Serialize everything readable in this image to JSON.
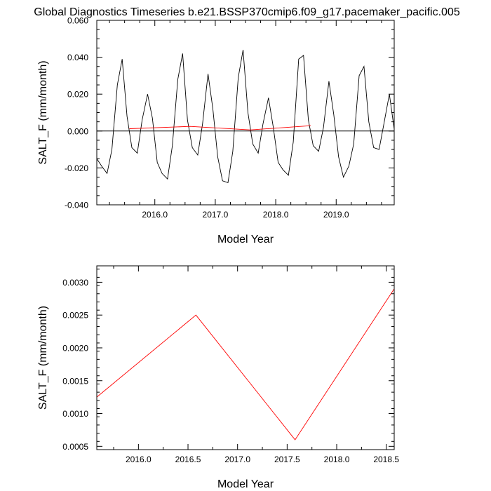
{
  "title": "Global Diagnostics Timeseries b.e21.BSSP370cmip6.f09_g17.pacemaker_pacific.005",
  "chart_data": [
    {
      "type": "line",
      "xlabel": "Model Year",
      "ylabel": "SALT_F (mm/month)",
      "xlim": [
        2015.04,
        2019.96
      ],
      "ylim": [
        -0.04,
        0.06
      ],
      "xticks": [
        2016.0,
        2017.0,
        2018.0,
        2019.0
      ],
      "xtick_labels": [
        "2016.0",
        "2017.0",
        "2018.0",
        "2019.0"
      ],
      "yticks": [
        -0.04,
        -0.02,
        0.0,
        0.02,
        0.04,
        0.06
      ],
      "ytick_labels": [
        "-0.040",
        "-0.020",
        "0.000",
        "0.020",
        "0.040",
        "0.060"
      ],
      "grid": false,
      "zero_line": true,
      "series": [
        {
          "color": "#000000",
          "x": [
            2015.04,
            2015.12,
            2015.21,
            2015.29,
            2015.38,
            2015.46,
            2015.54,
            2015.62,
            2015.71,
            2015.79,
            2015.88,
            2015.96,
            2016.04,
            2016.12,
            2016.21,
            2016.29,
            2016.38,
            2016.46,
            2016.54,
            2016.62,
            2016.71,
            2016.79,
            2016.88,
            2016.96,
            2017.04,
            2017.12,
            2017.21,
            2017.29,
            2017.38,
            2017.46,
            2017.54,
            2017.62,
            2017.71,
            2017.79,
            2017.88,
            2017.96,
            2018.04,
            2018.12,
            2018.21,
            2018.29,
            2018.38,
            2018.46,
            2018.54,
            2018.62,
            2018.71,
            2018.79,
            2018.88,
            2018.96,
            2019.04,
            2019.12,
            2019.21,
            2019.29,
            2019.38,
            2019.46,
            2019.54,
            2019.62,
            2019.71,
            2019.79,
            2019.88,
            2019.96
          ],
          "values": [
            -0.015,
            -0.019,
            -0.023,
            -0.01,
            0.025,
            0.039,
            0.008,
            -0.009,
            -0.012,
            0.006,
            0.02,
            0.007,
            -0.017,
            -0.023,
            -0.026,
            -0.008,
            0.028,
            0.042,
            0.006,
            -0.009,
            -0.013,
            0.004,
            0.031,
            0.012,
            -0.014,
            -0.027,
            -0.028,
            -0.011,
            0.029,
            0.044,
            0.01,
            -0.007,
            -0.012,
            0.004,
            0.018,
            0.002,
            -0.017,
            -0.021,
            -0.024,
            -0.006,
            0.039,
            0.041,
            0.006,
            -0.008,
            -0.011,
            0.002,
            0.027,
            0.009,
            -0.014,
            -0.025,
            -0.019,
            -0.007,
            0.03,
            0.035,
            0.005,
            -0.009,
            -0.01,
            0.004,
            0.02,
            0.001
          ]
        },
        {
          "color": "#ff0000",
          "x": [
            2015.58,
            2016.58,
            2017.58,
            2018.58
          ],
          "values": [
            0.00125,
            0.0025,
            0.0006,
            0.0029
          ]
        }
      ]
    },
    {
      "type": "line",
      "xlabel": "Model Year",
      "ylabel": "SALT_F (mm/month)",
      "xlim": [
        2015.58,
        2018.58
      ],
      "ylim": [
        0.00045,
        0.00325
      ],
      "xticks": [
        2016.0,
        2016.5,
        2017.0,
        2017.5,
        2018.0,
        2018.5
      ],
      "xtick_labels": [
        "2016.0",
        "2016.5",
        "2017.0",
        "2017.5",
        "2018.0",
        "2018.5"
      ],
      "yticks": [
        0.0005,
        0.001,
        0.0015,
        0.002,
        0.0025,
        0.003
      ],
      "ytick_labels": [
        "0.0005",
        "0.0010",
        "0.0015",
        "0.0020",
        "0.0025",
        "0.0030"
      ],
      "grid": false,
      "series": [
        {
          "color": "#ff0000",
          "x": [
            2015.58,
            2016.58,
            2017.58,
            2018.58
          ],
          "values": [
            0.00125,
            0.0025,
            0.0006,
            0.0029
          ]
        }
      ]
    }
  ]
}
